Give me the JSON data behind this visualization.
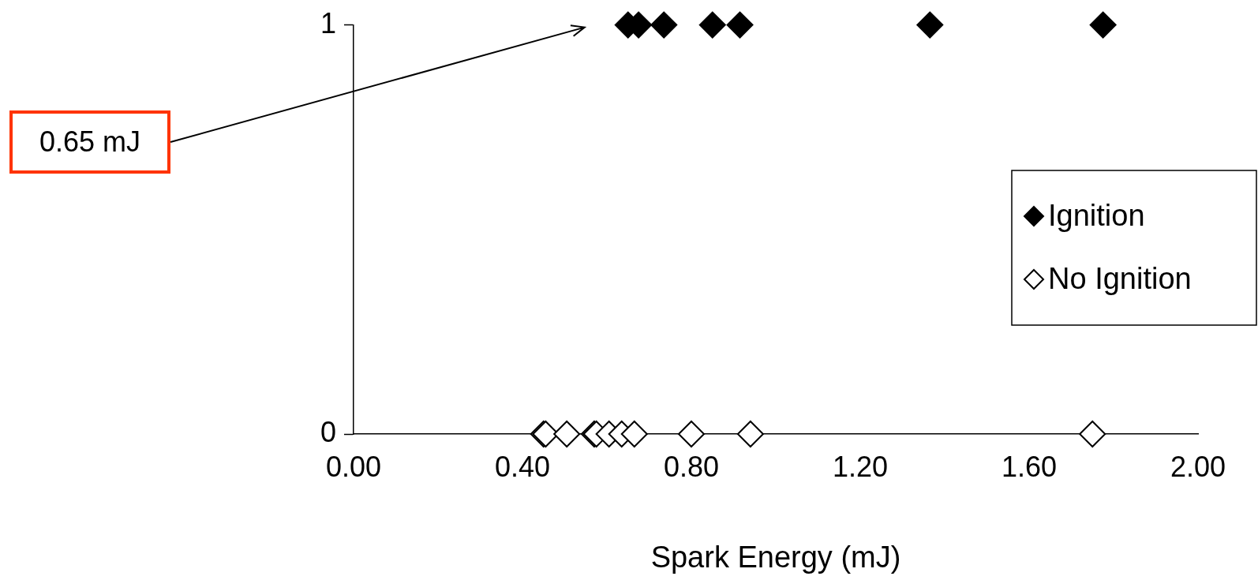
{
  "chart_data": {
    "type": "scatter",
    "xlabel": "Spark Energy (mJ)",
    "marker": "diamond",
    "legend": "right",
    "grid": false,
    "xlim": [
      0,
      2
    ],
    "xticks": [
      {
        "value": 0,
        "label": "0.00"
      },
      {
        "value": 0.4,
        "label": "0.40"
      },
      {
        "value": 0.8,
        "label": "0.80"
      },
      {
        "value": 1.2,
        "label": "1.20"
      },
      {
        "value": 1.6,
        "label": "1.60"
      },
      {
        "value": 2,
        "label": "2.00"
      }
    ],
    "ylim": [
      0,
      1
    ],
    "yticks": [
      0,
      1
    ],
    "series": [
      {
        "name": "Ignition",
        "color": "#000000",
        "x": [
          0.65,
          0.675,
          0.735,
          0.85,
          0.915,
          1.365,
          1.775
        ],
        "values": [
          1,
          1,
          1,
          1,
          1,
          1,
          1
        ]
      },
      {
        "name": "No Ignition",
        "color": "#000000",
        "x": [
          0.45,
          0.455,
          0.505,
          0.57,
          0.575,
          0.605,
          0.635,
          0.665,
          0.8,
          0.94,
          1.75
        ],
        "values": [
          0,
          0,
          0,
          0,
          0,
          0,
          0,
          0,
          0,
          0,
          0
        ]
      }
    ],
    "annotations": [
      "0.65 mJ"
    ]
  }
}
